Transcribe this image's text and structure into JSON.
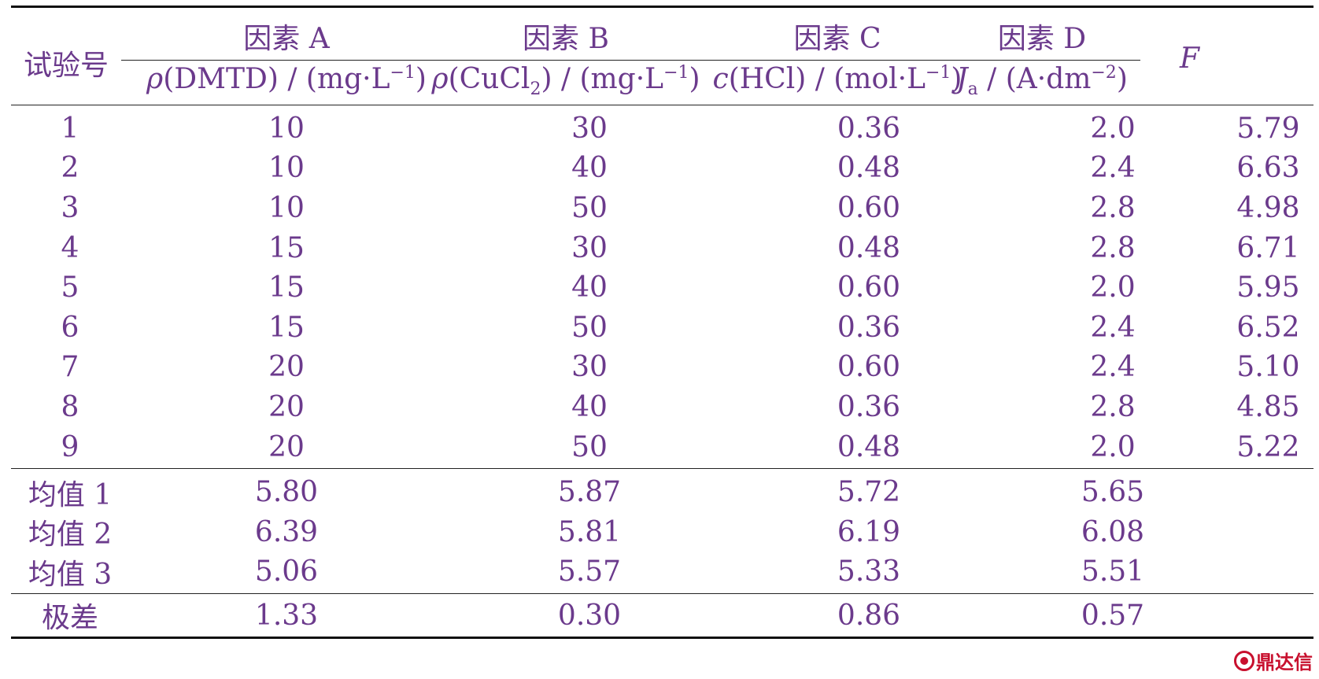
{
  "header": {
    "col0": "试验号",
    "factorA": "因素 A",
    "factorB": "因素 B",
    "factorC": "因素 C",
    "factorD": "因素 D",
    "colF": "F",
    "unitA": {
      "sym": "ρ",
      "main": "(DMTD) / (mg·L",
      "exp": "−1",
      "end": ")"
    },
    "unitB": {
      "sym": "ρ",
      "pre": "(CuCl",
      "sub": "2",
      "post": ") / (mg·L",
      "exp": "−1",
      "end": ")"
    },
    "unitC": {
      "sym": "c",
      "main": "(HCl) / (mol·L",
      "exp": "−1",
      "end": ")"
    },
    "unitD": {
      "sym": "J",
      "sub": "a",
      "main": " / (A·dm",
      "exp": "−2",
      "end": ")"
    }
  },
  "rows": [
    [
      "1",
      "10",
      "30",
      "0.36",
      "2.0",
      "5.79"
    ],
    [
      "2",
      "10",
      "40",
      "0.48",
      "2.4",
      "6.63"
    ],
    [
      "3",
      "10",
      "50",
      "0.60",
      "2.8",
      "4.98"
    ],
    [
      "4",
      "15",
      "30",
      "0.48",
      "2.8",
      "6.71"
    ],
    [
      "5",
      "15",
      "40",
      "0.60",
      "2.0",
      "5.95"
    ],
    [
      "6",
      "15",
      "50",
      "0.36",
      "2.4",
      "6.52"
    ],
    [
      "7",
      "20",
      "30",
      "0.60",
      "2.4",
      "5.10"
    ],
    [
      "8",
      "20",
      "40",
      "0.36",
      "2.8",
      "4.85"
    ],
    [
      "9",
      "20",
      "50",
      "0.48",
      "2.0",
      "5.22"
    ]
  ],
  "means": [
    [
      "均值 1",
      "5.80",
      "5.87",
      "5.72",
      "5.65",
      ""
    ],
    [
      "均值 2",
      "6.39",
      "5.81",
      "6.19",
      "6.08",
      ""
    ],
    [
      "均值 3",
      "5.06",
      "5.57",
      "5.33",
      "5.51",
      ""
    ]
  ],
  "range": [
    "极差",
    "1.33",
    "0.30",
    "0.86",
    "0.57",
    ""
  ],
  "watermark": "鼎达信"
}
